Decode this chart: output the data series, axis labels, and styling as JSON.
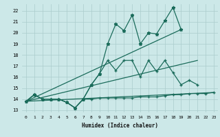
{
  "xlabel": "Humidex (Indice chaleur)",
  "x_ticks": [
    0,
    1,
    2,
    3,
    4,
    5,
    6,
    7,
    8,
    9,
    10,
    11,
    12,
    13,
    14,
    15,
    16,
    17,
    18,
    19,
    20,
    21,
    22,
    23
  ],
  "xlim": [
    -0.5,
    23.5
  ],
  "ylim": [
    12.8,
    22.6
  ],
  "y_ticks": [
    13,
    14,
    15,
    16,
    17,
    18,
    19,
    20,
    21,
    22
  ],
  "background_color": "#cce8e8",
  "grid_color": "#aacccc",
  "line_color": "#1a6b5a",
  "series1_x": [
    0,
    1,
    2,
    3,
    4,
    5,
    6,
    7,
    8,
    9,
    10,
    11,
    12,
    13,
    14,
    15,
    16,
    17,
    18,
    19
  ],
  "series1_y": [
    13.8,
    14.4,
    14.0,
    14.0,
    14.0,
    13.7,
    13.2,
    14.0,
    15.3,
    16.3,
    19.0,
    20.8,
    20.2,
    21.6,
    19.0,
    20.0,
    19.9,
    21.1,
    22.3,
    20.3
  ],
  "series2_x": [
    0,
    1,
    2,
    3,
    4,
    5,
    6,
    7,
    8,
    9,
    10,
    11,
    12,
    13,
    14,
    15,
    16,
    17,
    18,
    19,
    20,
    21
  ],
  "series2_y": [
    13.8,
    14.4,
    14.0,
    14.0,
    14.0,
    13.7,
    13.2,
    14.0,
    15.3,
    16.3,
    17.5,
    16.6,
    17.5,
    17.5,
    16.0,
    17.5,
    16.5,
    17.5,
    16.4,
    15.3,
    15.7,
    15.3
  ],
  "series3_x": [
    0,
    1,
    2,
    3,
    4,
    5,
    6,
    7,
    8,
    9,
    10,
    11,
    12,
    13,
    14,
    15,
    16,
    17,
    18,
    19,
    20,
    21,
    22,
    23
  ],
  "series3_y": [
    13.8,
    14.4,
    14.0,
    14.0,
    14.0,
    13.7,
    13.2,
    14.0,
    14.0,
    14.1,
    14.1,
    14.1,
    14.1,
    14.1,
    14.2,
    14.2,
    14.2,
    14.3,
    14.4,
    14.4,
    14.5,
    14.5,
    14.5,
    14.6
  ],
  "trend1_x": [
    0,
    19
  ],
  "trend1_y": [
    13.8,
    20.3
  ],
  "trend2_x": [
    0,
    21
  ],
  "trend2_y": [
    13.8,
    17.5
  ],
  "trend3_x": [
    0,
    23
  ],
  "trend3_y": [
    13.8,
    14.6
  ]
}
